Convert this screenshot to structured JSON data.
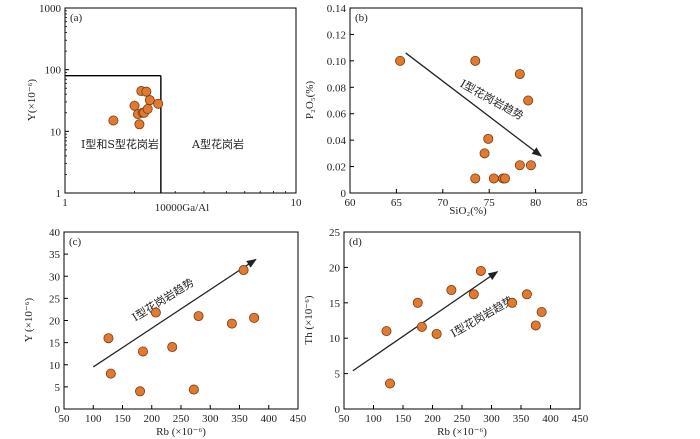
{
  "chart_data": [
    {
      "panel": "(a)",
      "type": "scatter",
      "xscale": "log",
      "yscale": "log",
      "xlim": [
        1,
        10
      ],
      "ylim": [
        1,
        1000
      ],
      "xticks": [
        "1",
        "10"
      ],
      "yticks": [
        "1",
        "10",
        "100",
        "1000"
      ],
      "xlabel": "10000Ga/Al",
      "ylabel": "Y(×10⁻⁶)",
      "boundary": {
        "x": 2.6,
        "y": 80
      },
      "regions": [
        "I型和S型花岗岩",
        "A型花岗岩"
      ],
      "points": [
        {
          "x": 1.62,
          "y": 15
        },
        {
          "x": 2.0,
          "y": 26
        },
        {
          "x": 2.07,
          "y": 19
        },
        {
          "x": 2.1,
          "y": 13
        },
        {
          "x": 2.14,
          "y": 45
        },
        {
          "x": 2.17,
          "y": 20
        },
        {
          "x": 2.2,
          "y": 20
        },
        {
          "x": 2.25,
          "y": 44
        },
        {
          "x": 2.28,
          "y": 23
        },
        {
          "x": 2.33,
          "y": 32
        },
        {
          "x": 2.53,
          "y": 28
        }
      ]
    },
    {
      "panel": "(b)",
      "type": "scatter",
      "xlim": [
        60,
        85
      ],
      "ylim": [
        0,
        0.14
      ],
      "xticks": [
        "60",
        "65",
        "70",
        "75",
        "80",
        "85"
      ],
      "yticks": [
        "0",
        "0.02",
        "0.04",
        "0.06",
        "0.08",
        "0.10",
        "0.12",
        "0.14"
      ],
      "xlabel": "SiO₂(%)",
      "ylabel": "P₂O₅(%)",
      "trend_label": "I型花岗岩趋势",
      "trend": {
        "from": [
          66,
          0.106
        ],
        "to": [
          80.6,
          0.028
        ]
      },
      "points": [
        {
          "x": 65.4,
          "y": 0.1
        },
        {
          "x": 73.5,
          "y": 0.1
        },
        {
          "x": 73.5,
          "y": 0.011
        },
        {
          "x": 74.5,
          "y": 0.03
        },
        {
          "x": 74.9,
          "y": 0.041
        },
        {
          "x": 75.5,
          "y": 0.011
        },
        {
          "x": 76.5,
          "y": 0.011
        },
        {
          "x": 76.7,
          "y": 0.011
        },
        {
          "x": 78.3,
          "y": 0.09
        },
        {
          "x": 78.3,
          "y": 0.021
        },
        {
          "x": 79.2,
          "y": 0.07
        },
        {
          "x": 79.5,
          "y": 0.021
        }
      ]
    },
    {
      "panel": "(c)",
      "type": "scatter",
      "xlim": [
        50,
        450
      ],
      "ylim": [
        0,
        40
      ],
      "xticks": [
        "50",
        "100",
        "150",
        "200",
        "250",
        "300",
        "350",
        "400",
        "450"
      ],
      "yticks": [
        "0",
        "5",
        "10",
        "15",
        "20",
        "25",
        "30",
        "35",
        "40"
      ],
      "xlabel": "Rb (×10⁻⁶)",
      "ylabel": "Y (×10⁻⁶)",
      "trend_label": "I型花岗岩趋势",
      "trend": {
        "from": [
          100,
          9.5
        ],
        "to": [
          378,
          33.8
        ]
      },
      "points": [
        {
          "x": 126,
          "y": 16
        },
        {
          "x": 130,
          "y": 8
        },
        {
          "x": 180,
          "y": 4
        },
        {
          "x": 185,
          "y": 13
        },
        {
          "x": 207,
          "y": 21.8
        },
        {
          "x": 235,
          "y": 14
        },
        {
          "x": 272,
          "y": 4.4
        },
        {
          "x": 280,
          "y": 21
        },
        {
          "x": 337,
          "y": 19.3
        },
        {
          "x": 357,
          "y": 31.4
        },
        {
          "x": 375,
          "y": 20.6
        }
      ]
    },
    {
      "panel": "(d)",
      "type": "scatter",
      "xlim": [
        50,
        450
      ],
      "ylim": [
        0,
        25
      ],
      "xticks": [
        "50",
        "100",
        "150",
        "200",
        "250",
        "300",
        "350",
        "400",
        "450"
      ],
      "yticks": [
        "0",
        "5",
        "10",
        "15",
        "20",
        "25"
      ],
      "xlabel": "Rb (×10⁻⁶)",
      "ylabel": "Th (×10⁻⁶)",
      "trend_label": "I型花岗岩趋势",
      "trend": {
        "from": [
          65,
          5.4
        ],
        "to": [
          310,
          19.4
        ]
      },
      "points": [
        {
          "x": 122,
          "y": 11
        },
        {
          "x": 128,
          "y": 3.6
        },
        {
          "x": 175,
          "y": 15
        },
        {
          "x": 182,
          "y": 11.6
        },
        {
          "x": 207,
          "y": 10.6
        },
        {
          "x": 232,
          "y": 16.8
        },
        {
          "x": 270,
          "y": 16.2
        },
        {
          "x": 282,
          "y": 19.5
        },
        {
          "x": 335,
          "y": 15
        },
        {
          "x": 360,
          "y": 16.2
        },
        {
          "x": 375,
          "y": 11.8
        },
        {
          "x": 385,
          "y": 13.7
        }
      ]
    }
  ]
}
